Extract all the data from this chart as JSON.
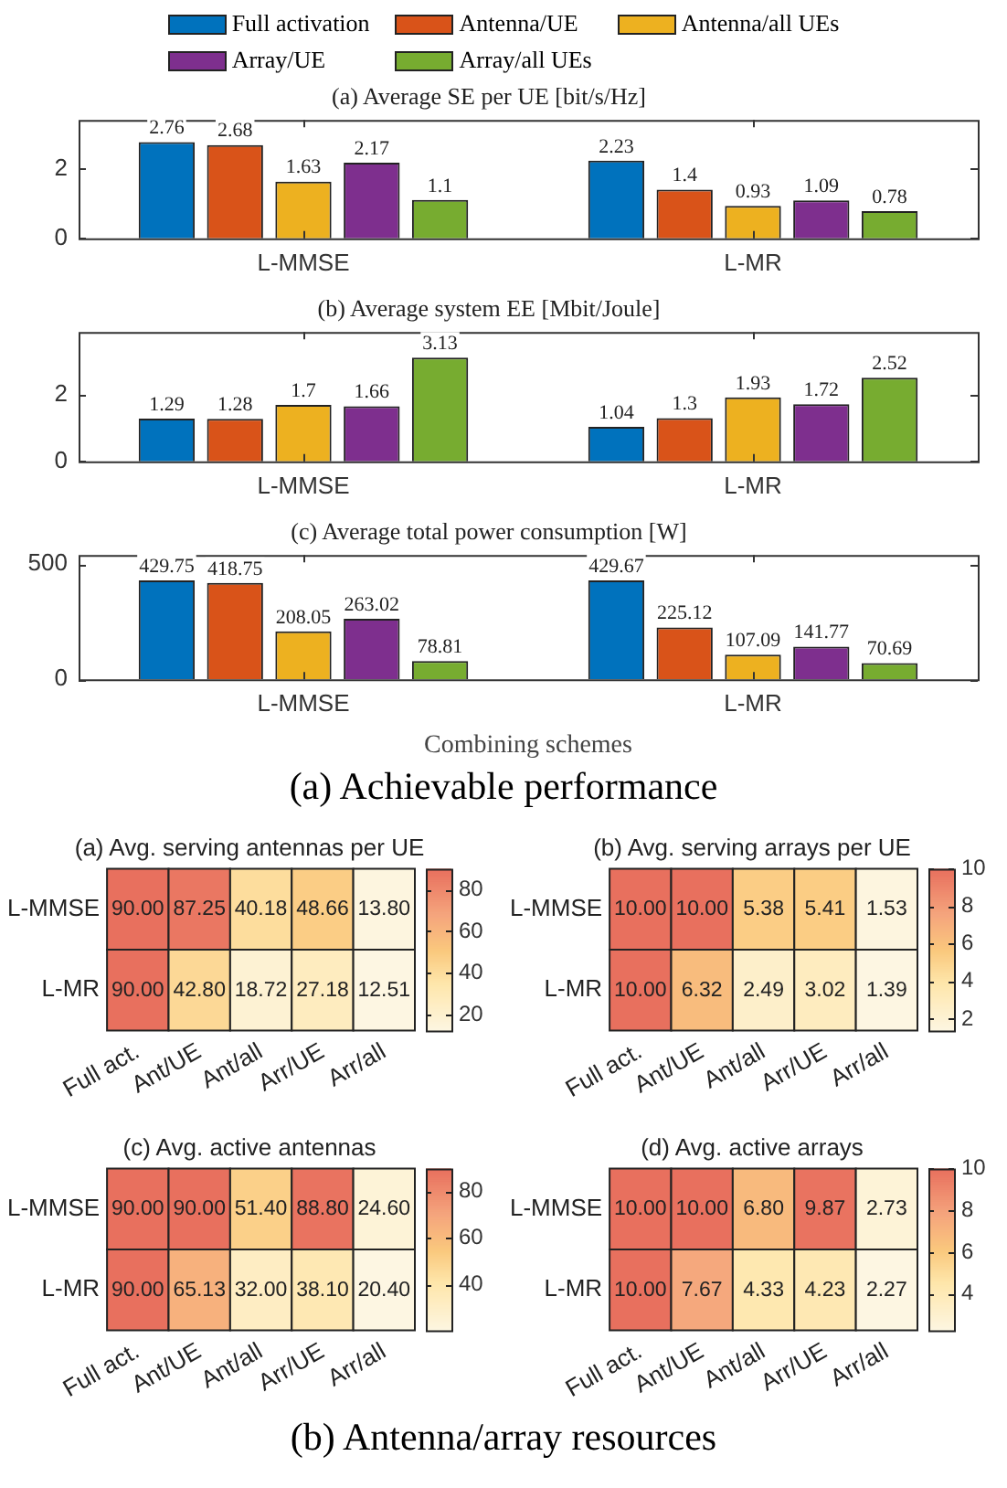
{
  "chart_data": [
    {
      "type": "bar",
      "title": "(a) Average SE per UE [bit/s/Hz]",
      "categories": [
        "L-MMSE",
        "L-MR"
      ],
      "legend": "top",
      "data_labels": true,
      "ylim": [
        0,
        3.4
      ],
      "yticks": [
        0,
        2
      ],
      "series": [
        {
          "name": "Full activation",
          "color": "#0072bd",
          "values": [
            2.76,
            2.23
          ]
        },
        {
          "name": "Antenna/UE",
          "color": "#d95319",
          "values": [
            2.68,
            1.4
          ]
        },
        {
          "name": "Antenna/all UEs",
          "color": "#edb120",
          "values": [
            1.63,
            0.93
          ]
        },
        {
          "name": "Array/UE",
          "color": "#7e2f8e",
          "values": [
            2.17,
            1.09
          ]
        },
        {
          "name": "Array/all UEs",
          "color": "#77ac30",
          "values": [
            1.1,
            0.78
          ]
        }
      ]
    },
    {
      "type": "bar",
      "title": "(b) Average system EE [Mbit/Joule]",
      "categories": [
        "L-MMSE",
        "L-MR"
      ],
      "data_labels": true,
      "ylim": [
        0,
        3.9
      ],
      "yticks": [
        0,
        2
      ],
      "series": [
        {
          "color": "#0072bd",
          "values": [
            1.29,
            1.04
          ]
        },
        {
          "color": "#d95319",
          "values": [
            1.28,
            1.3
          ]
        },
        {
          "color": "#edb120",
          "values": [
            1.7,
            1.93
          ]
        },
        {
          "color": "#7e2f8e",
          "values": [
            1.66,
            1.72
          ]
        },
        {
          "color": "#77ac30",
          "values": [
            3.13,
            2.52
          ]
        }
      ]
    },
    {
      "type": "bar",
      "title": "(c) Average total power consumption [W]",
      "xlabel": "Combining schemes",
      "annotations": [
        "(a) Achievable performance"
      ],
      "categories": [
        "L-MMSE",
        "L-MR"
      ],
      "data_labels": true,
      "ylim": [
        0,
        540
      ],
      "yticks": [
        0,
        500
      ],
      "series": [
        {
          "color": "#0072bd",
          "values": [
            429.75,
            429.67
          ]
        },
        {
          "color": "#d95319",
          "values": [
            418.75,
            225.12
          ]
        },
        {
          "color": "#edb120",
          "values": [
            208.05,
            107.09
          ]
        },
        {
          "color": "#7e2f8e",
          "values": [
            263.02,
            141.77
          ]
        },
        {
          "color": "#77ac30",
          "values": [
            78.81,
            70.69
          ]
        }
      ]
    },
    {
      "type": "heatmap",
      "title": "(a) Avg. serving antennas per UE",
      "categories": [
        "Full act.",
        "Ant/UE",
        "Ant/all",
        "Arr/UE",
        "Arr/all"
      ],
      "y_categories": [
        "L-MMSE",
        "L-MR"
      ],
      "cells": [
        [
          90,
          87.25,
          40.18,
          48.66,
          13.8
        ],
        [
          90,
          42.8,
          18.72,
          27.18,
          12.51
        ]
      ],
      "cell_labels": [
        [
          "90.00",
          "87.25",
          "40.18",
          "48.66",
          "13.80"
        ],
        [
          "90.00",
          "42.80",
          "18.72",
          "27.18",
          "12.51"
        ]
      ],
      "clim": [
        12.51,
        90
      ],
      "cticks": [
        20,
        40,
        60,
        80
      ]
    },
    {
      "type": "heatmap",
      "title": "(b) Avg. serving arrays per UE",
      "categories": [
        "Full act.",
        "Ant/UE",
        "Ant/all",
        "Arr/UE",
        "Arr/all"
      ],
      "y_categories": [
        "L-MMSE",
        "L-MR"
      ],
      "cells": [
        [
          10,
          10,
          5.38,
          5.41,
          1.53
        ],
        [
          10,
          6.32,
          2.49,
          3.02,
          1.39
        ]
      ],
      "cell_labels": [
        [
          "10.00",
          "10.00",
          "5.38",
          "5.41",
          "1.53"
        ],
        [
          "10.00",
          "6.32",
          "2.49",
          "3.02",
          "1.39"
        ]
      ],
      "clim": [
        1.39,
        10
      ],
      "cticks": [
        2,
        4,
        6,
        8,
        10
      ]
    },
    {
      "type": "heatmap",
      "title": "(c) Avg. active antennas",
      "categories": [
        "Full act.",
        "Ant/UE",
        "Ant/all",
        "Arr/UE",
        "Arr/all"
      ],
      "y_categories": [
        "L-MMSE",
        "L-MR"
      ],
      "cells": [
        [
          90,
          90,
          51.4,
          88.8,
          24.6
        ],
        [
          90,
          65.13,
          32,
          38.1,
          20.4
        ]
      ],
      "cell_labels": [
        [
          "90.00",
          "90.00",
          "51.40",
          "88.80",
          "24.60"
        ],
        [
          "90.00",
          "65.13",
          "32.00",
          "38.10",
          "20.40"
        ]
      ],
      "clim": [
        20.4,
        90
      ],
      "cticks": [
        40,
        60,
        80
      ]
    },
    {
      "type": "heatmap",
      "title": "(d) Avg. active arrays",
      "categories": [
        "Full act.",
        "Ant/UE",
        "Ant/all",
        "Arr/UE",
        "Arr/all"
      ],
      "y_categories": [
        "L-MMSE",
        "L-MR"
      ],
      "cells": [
        [
          10,
          10,
          6.8,
          9.87,
          2.73
        ],
        [
          10,
          7.67,
          4.33,
          4.23,
          2.27
        ]
      ],
      "cell_labels": [
        [
          "10.00",
          "10.00",
          "6.80",
          "9.87",
          "2.73"
        ],
        [
          "10.00",
          "7.67",
          "4.33",
          "4.23",
          "2.27"
        ]
      ],
      "clim": [
        2.27,
        10
      ],
      "cticks": [
        4,
        6,
        8,
        10
      ],
      "annotations": [
        "(b) Antenna/array resources"
      ]
    }
  ]
}
